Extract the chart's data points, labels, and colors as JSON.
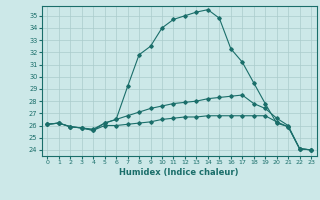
{
  "title": "",
  "xlabel": "Humidex (Indice chaleur)",
  "background_color": "#cce8e8",
  "line_color": "#1a6e6a",
  "grid_color": "#aacccc",
  "xlim": [
    -0.5,
    23.5
  ],
  "ylim": [
    23.5,
    35.8
  ],
  "yticks": [
    24,
    25,
    26,
    27,
    28,
    29,
    30,
    31,
    32,
    33,
    34,
    35
  ],
  "xticks": [
    0,
    1,
    2,
    3,
    4,
    5,
    6,
    7,
    8,
    9,
    10,
    11,
    12,
    13,
    14,
    15,
    16,
    17,
    18,
    19,
    20,
    21,
    22,
    23
  ],
  "series": [
    [
      26.1,
      26.2,
      25.9,
      25.8,
      25.7,
      26.2,
      26.5,
      29.2,
      31.8,
      32.5,
      34.0,
      34.7,
      35.0,
      35.3,
      35.5,
      34.8,
      32.3,
      31.2,
      29.5,
      27.8,
      26.2,
      25.9,
      24.1,
      24.0
    ],
    [
      26.1,
      26.2,
      25.9,
      25.8,
      25.6,
      26.2,
      26.5,
      26.8,
      27.1,
      27.4,
      27.6,
      27.8,
      27.9,
      28.0,
      28.2,
      28.3,
      28.4,
      28.5,
      27.8,
      27.4,
      26.6,
      26.0,
      24.1,
      24.0
    ],
    [
      26.1,
      26.2,
      25.9,
      25.8,
      25.6,
      26.0,
      26.0,
      26.1,
      26.2,
      26.3,
      26.5,
      26.6,
      26.7,
      26.7,
      26.8,
      26.8,
      26.8,
      26.8,
      26.8,
      26.8,
      26.3,
      25.9,
      24.1,
      24.0
    ]
  ]
}
